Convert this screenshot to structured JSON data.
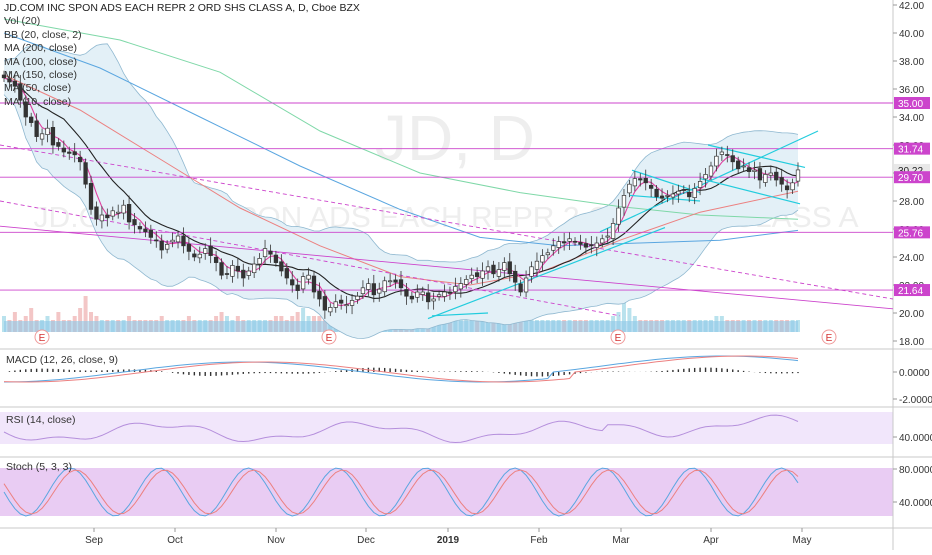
{
  "header": {
    "title": "JD.COM INC SPON ADS EACH REPR 2 ORD SHS CLASS A, D, Cboe BZX",
    "watermark_symbol": "JD, D",
    "watermark_name": "JD.COM INC SPON ADS EACH REPR 2 ORD SHS CLASS A"
  },
  "indicators": [
    "Vol (20)",
    "BB (20, close, 2)",
    "MA (200, close)",
    "MA (100, close)",
    "MA (150, close)",
    "MA (50, close)",
    "MA (10, close)"
  ],
  "panes": {
    "macd_label": "MACD (12, 26, close, 9)",
    "rsi_label": "RSI (14, close)",
    "stoch_label": "Stoch (5, 3, 3)"
  },
  "price_axis": {
    "ticks": [
      "42.00",
      "40.00",
      "38.00",
      "36.00",
      "34.00",
      "32.00",
      "30.00",
      "28.00",
      "26.00",
      "24.00",
      "22.00",
      "20.00",
      "18.00"
    ],
    "tick_values": [
      42,
      40,
      38,
      36,
      34,
      32,
      30,
      28,
      26,
      24,
      22,
      20,
      18
    ]
  },
  "price_tags": [
    {
      "label": "35.00",
      "value": 35.0,
      "color": "#cc44cc"
    },
    {
      "label": "31.74",
      "value": 31.74,
      "color": "#cc44cc"
    },
    {
      "label": "30.22",
      "value": 30.22,
      "color": "#e8e8e8"
    },
    {
      "label": "29.70",
      "value": 29.7,
      "color": "#cc44cc"
    },
    {
      "label": "25.76",
      "value": 25.76,
      "color": "#cc44cc"
    },
    {
      "label": "21.64",
      "value": 21.64,
      "color": "#cc44cc"
    }
  ],
  "macd_axis": [
    "0.0000",
    "-2.0000"
  ],
  "rsi_axis": [
    "40.0000"
  ],
  "stoch_axis": [
    "80.0000",
    "40.0000"
  ],
  "time_axis": [
    "Sep",
    "Oct",
    "Nov",
    "Dec",
    "2019",
    "Feb",
    "Mar",
    "Apr",
    "May"
  ],
  "earnings_marker": "E",
  "colors": {
    "up": "#26a69a",
    "down": "#ef5350",
    "candle": "#333333",
    "bb_fill": "#e3f0f7",
    "ma10": "#e040a0",
    "ma50": "#222222",
    "ma100": "#ec8080",
    "ma150": "#5aa6e0",
    "ma200": "#7fd8a8",
    "horizontal": "#cc44cc",
    "trend_cyan": "#22ccdd",
    "volume": "#8ec8e8"
  },
  "chart_data": {
    "type": "candlestick",
    "symbol": "JD",
    "interval": "D",
    "ylim": [
      18,
      42
    ],
    "horizontal_levels": [
      35.0,
      31.74,
      29.7,
      25.76,
      21.64
    ],
    "last_price": 30.22,
    "close_series": [
      36.8,
      36.5,
      36.2,
      35.2,
      34.0,
      33.6,
      32.6,
      32.8,
      33.2,
      32.0,
      31.9,
      31.5,
      31.4,
      31.3,
      30.8,
      29.2,
      27.4,
      26.7,
      27.0,
      26.8,
      27.3,
      27.2,
      27.7,
      26.5,
      26.3,
      26.0,
      25.8,
      25.4,
      25.2,
      24.5,
      24.9,
      25.2,
      25.5,
      24.8,
      24.4,
      24.0,
      24.2,
      24.6,
      24.1,
      23.6,
      22.7,
      22.8,
      23.4,
      23.0,
      22.5,
      23.0,
      23.5,
      23.9,
      24.6,
      24.2,
      23.6,
      23.0,
      22.5,
      22.0,
      21.6,
      22.6,
      22.7,
      21.5,
      21.0,
      20.2,
      20.4,
      20.8,
      20.7,
      20.6,
      20.9,
      21.2,
      21.8,
      22.1,
      21.3,
      21.7,
      22.3,
      22.3,
      22.2,
      21.8,
      21.2,
      21.0,
      21.5,
      21.5,
      20.8,
      21.0,
      21.3,
      21.5,
      21.4,
      21.9,
      22.1,
      22.4,
      22.7,
      22.6,
      23.0,
      23.3,
      22.8,
      23.1,
      23.6,
      22.8,
      22.2,
      21.5,
      22.5,
      23.3,
      23.7,
      24.1,
      24.3,
      24.8,
      25.1,
      25.0,
      25.3,
      25.1,
      24.9,
      24.7,
      24.8,
      25.0,
      25.3,
      25.5,
      26.4,
      27.5,
      28.4,
      29.2,
      29.6,
      29.5,
      29.3,
      28.9,
      28.3,
      28.2,
      28.4,
      28.5,
      28.7,
      28.8,
      28.3,
      28.9,
      29.4,
      29.9,
      30.5,
      31.2,
      31.5,
      31.3,
      30.8,
      30.3,
      30.5,
      30.1,
      30.2,
      29.5,
      29.9,
      30.0,
      29.5,
      29.2,
      28.8,
      29.3,
      30.22
    ],
    "volume_levels": [
      0.4,
      0.3,
      0.5,
      0.3,
      0.4,
      0.6,
      0.3,
      0.3,
      0.4,
      0.3,
      0.5,
      0.3,
      0.3,
      0.4,
      0.6,
      0.9,
      0.5,
      0.4,
      0.3,
      0.3,
      0.3,
      0.3,
      0.3,
      0.4,
      0.3,
      0.3,
      0.3,
      0.3,
      0.3,
      0.4,
      0.3,
      0.3,
      0.3,
      0.3,
      0.4,
      0.3,
      0.3,
      0.3,
      0.3,
      0.4,
      0.5,
      0.4,
      0.3,
      0.4,
      0.3,
      0.3,
      0.3,
      0.3,
      0.3,
      0.3,
      0.4,
      0.4,
      0.3,
      0.4,
      0.5,
      0.6,
      0.4,
      0.4,
      0.4,
      0.4,
      0.3,
      0.3,
      0.3,
      0.3,
      0.3,
      0.3,
      0.3,
      0.3,
      0.4,
      0.3,
      0.3,
      0.3,
      0.4,
      0.3,
      0.3,
      0.3,
      0.3,
      0.3,
      0.3,
      0.3,
      0.3,
      0.3,
      0.3,
      0.3,
      0.3,
      0.3,
      0.3,
      0.3,
      0.3,
      0.3,
      0.3,
      0.3,
      0.3,
      0.3,
      0.4,
      0.4,
      0.3,
      0.3,
      0.3,
      0.3,
      0.3,
      0.3,
      0.3,
      0.3,
      0.3,
      0.3,
      0.3,
      0.3,
      0.3,
      0.3,
      0.3,
      0.3,
      0.4,
      0.5,
      1.0,
      0.6,
      0.4,
      0.3,
      0.3,
      0.3,
      0.3,
      0.3,
      0.3,
      0.3,
      0.3,
      0.3,
      0.3,
      0.3,
      0.3,
      0.3,
      0.3,
      0.4,
      0.4,
      0.3,
      0.3,
      0.3,
      0.3,
      0.3,
      0.3,
      0.3,
      0.3,
      0.3,
      0.3,
      0.3,
      0.3,
      0.3,
      0.3
    ],
    "rsi_range": [
      20,
      80
    ],
    "stoch_range": [
      0,
      100
    ]
  }
}
